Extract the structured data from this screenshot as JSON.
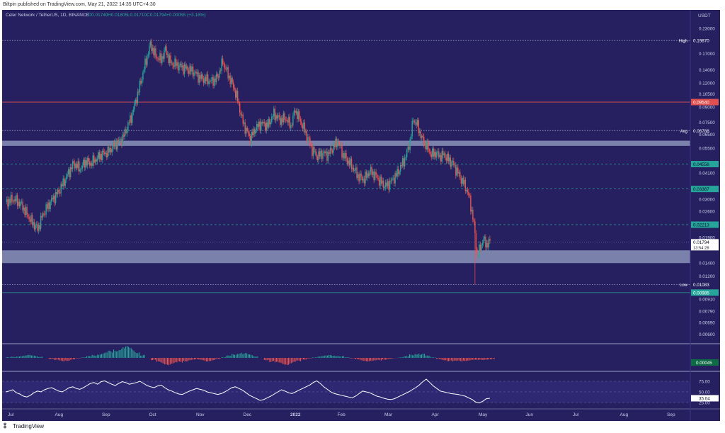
{
  "publisher_line": "Biltpin published on TradingView.com, May 21, 2022 14:35 UTC+4:30",
  "footer": {
    "logo_icon": "tradingview-logo-icon",
    "brand": "TradingView"
  },
  "colors": {
    "panel_bg": "#262060",
    "up": "#26a69a",
    "down": "#ef5350",
    "support_zone": "#8a94b8",
    "red_line": "#e05050",
    "rsi_line": "#ffffff"
  },
  "chart_data": {
    "type": "candlestick",
    "symbol_line": "Celer Network / TetherUS, 1D, BINANCE",
    "ohlc": {
      "open": "O0.01740",
      "high": "H0.01805",
      "low": "L0.01710",
      "close": "C0.01794",
      "change": "+0.00055 (+3.16%)"
    },
    "currency": "USDT",
    "y_scale": "log",
    "ylim": [
      0.0054,
      0.25
    ],
    "price_ticks": [
      "0.23000",
      "0.17000",
      "0.14000",
      "0.12000",
      "0.10500",
      "0.09000",
      "0.07500",
      "0.06500",
      "0.05500",
      "0.04100",
      "0.03000",
      "0.02600",
      "0.01900",
      "0.01400",
      "0.01200",
      "0.00910",
      "0.00790",
      "0.00690",
      "0.00600"
    ],
    "price_tick_values": [
      0.23,
      0.17,
      0.14,
      0.12,
      0.105,
      0.09,
      0.075,
      0.065,
      0.055,
      0.041,
      0.03,
      0.026,
      0.019,
      0.014,
      0.012,
      0.0091,
      0.0079,
      0.0069,
      0.006
    ],
    "x_labels": [
      "Jul",
      "Aug",
      "Sep",
      "Oct",
      "Nov",
      "Dec",
      "2022",
      "Feb",
      "Mar",
      "Apr",
      "May",
      "Jun",
      "Jul",
      "Aug",
      "Sep"
    ],
    "horizontal_levels": [
      {
        "label": "High",
        "value_text": "0.19870",
        "value": 0.1987,
        "style": "dotted",
        "color": "#9aa0c8"
      },
      {
        "label": "",
        "value_text": "0.09540",
        "value": 0.0954,
        "style": "solid",
        "color": "#e05050"
      },
      {
        "label": "Avg",
        "value_text": "0.06788",
        "value": 0.06788,
        "style": "dotted",
        "color": "#9aa0c8"
      },
      {
        "label": "",
        "value_text": "0.04556",
        "value": 0.04556,
        "style": "dashed",
        "color": "#26a69a"
      },
      {
        "label": "",
        "value_text": "0.03387",
        "value": 0.03387,
        "style": "dashed",
        "color": "#26a69a"
      },
      {
        "label": "",
        "value_text": "0.02213",
        "value": 0.02213,
        "style": "dashed",
        "color": "#26a69a"
      },
      {
        "label": "Low",
        "value_text": "0.01083",
        "value": 0.01083,
        "style": "dotted",
        "color": "#9aa0c8"
      },
      {
        "label": "",
        "value_text": "0.00985",
        "value": 0.00985,
        "style": "solid",
        "color": "#26a69a"
      }
    ],
    "zones": [
      {
        "low": 0.0566,
        "high": 0.0602
      },
      {
        "low": 0.014,
        "high": 0.0163
      }
    ],
    "last_price": {
      "value_text": "0.01794",
      "value": 0.01794,
      "countdown": "13:54:28"
    },
    "close_path": [
      [
        0,
        0.029
      ],
      [
        8,
        0.03
      ],
      [
        15,
        0.028
      ],
      [
        22,
        0.024
      ],
      [
        30,
        0.021
      ],
      [
        35,
        0.025
      ],
      [
        42,
        0.029
      ],
      [
        50,
        0.033
      ],
      [
        58,
        0.04
      ],
      [
        64,
        0.046
      ],
      [
        70,
        0.043
      ],
      [
        75,
        0.047
      ],
      [
        80,
        0.046
      ],
      [
        86,
        0.049
      ],
      [
        90,
        0.051
      ],
      [
        97,
        0.053
      ],
      [
        103,
        0.058
      ],
      [
        110,
        0.062
      ],
      [
        118,
        0.08
      ],
      [
        125,
        0.11
      ],
      [
        131,
        0.15
      ],
      [
        136,
        0.19
      ],
      [
        141,
        0.165
      ],
      [
        146,
        0.158
      ],
      [
        150,
        0.178
      ],
      [
        155,
        0.152
      ],
      [
        160,
        0.15
      ],
      [
        165,
        0.145
      ],
      [
        170,
        0.142
      ],
      [
        176,
        0.138
      ],
      [
        182,
        0.128
      ],
      [
        188,
        0.125
      ],
      [
        194,
        0.122
      ],
      [
        199,
        0.128
      ],
      [
        204,
        0.155
      ],
      [
        209,
        0.132
      ],
      [
        214,
        0.115
      ],
      [
        218,
        0.098
      ],
      [
        222,
        0.078
      ],
      [
        226,
        0.068
      ],
      [
        230,
        0.062
      ],
      [
        235,
        0.07
      ],
      [
        240,
        0.074
      ],
      [
        246,
        0.072
      ],
      [
        252,
        0.083
      ],
      [
        258,
        0.077
      ],
      [
        263,
        0.079
      ],
      [
        268,
        0.072
      ],
      [
        272,
        0.087
      ],
      [
        276,
        0.078
      ],
      [
        280,
        0.07
      ],
      [
        284,
        0.062
      ],
      [
        288,
        0.054
      ],
      [
        293,
        0.05
      ],
      [
        298,
        0.052
      ],
      [
        303,
        0.051
      ],
      [
        308,
        0.056
      ],
      [
        312,
        0.06
      ],
      [
        317,
        0.051
      ],
      [
        322,
        0.047
      ],
      [
        327,
        0.043
      ],
      [
        332,
        0.039
      ],
      [
        337,
        0.038
      ],
      [
        342,
        0.042
      ],
      [
        347,
        0.04
      ],
      [
        352,
        0.037
      ],
      [
        357,
        0.035
      ],
      [
        362,
        0.037
      ],
      [
        367,
        0.04
      ],
      [
        372,
        0.045
      ],
      [
        376,
        0.05
      ],
      [
        380,
        0.06
      ],
      [
        383,
        0.078
      ],
      [
        387,
        0.072
      ],
      [
        391,
        0.062
      ],
      [
        395,
        0.057
      ],
      [
        400,
        0.051
      ],
      [
        404,
        0.052
      ],
      [
        408,
        0.05
      ],
      [
        412,
        0.051
      ],
      [
        416,
        0.048
      ],
      [
        420,
        0.046
      ],
      [
        424,
        0.042
      ],
      [
        428,
        0.038
      ],
      [
        432,
        0.035
      ],
      [
        436,
        0.03
      ],
      [
        439,
        0.024
      ],
      [
        441,
        0.02
      ],
      [
        443,
        0.015
      ],
      [
        446,
        0.017
      ],
      [
        449,
        0.0185
      ],
      [
        452,
        0.0175
      ],
      [
        455,
        0.01794
      ]
    ],
    "low_wick_day": 441,
    "low_wick_value": 0.01083,
    "day_range": [
      0,
      640
    ],
    "histogram": {
      "last_value_text": "0.00045",
      "values": [
        0.05,
        0.1,
        0.15,
        0.2,
        0.25,
        0.2,
        0.1,
        0.0,
        -0.1,
        -0.2,
        -0.3,
        -0.25,
        -0.15,
        -0.05,
        0.05,
        0.15,
        0.25,
        0.35,
        0.45,
        0.6,
        0.75,
        0.9,
        1.0,
        0.85,
        0.55,
        0.25,
        0.0,
        -0.2,
        -0.4,
        -0.55,
        -0.6,
        -0.5,
        -0.4,
        -0.3,
        -0.2,
        -0.15,
        -0.2,
        -0.3,
        -0.25,
        -0.1,
        0.05,
        0.2,
        0.35,
        0.45,
        0.4,
        0.3,
        0.15,
        0.0,
        -0.2,
        -0.35,
        -0.45,
        -0.55,
        -0.6,
        -0.45,
        -0.3,
        -0.15,
        -0.05,
        0.05,
        0.15,
        0.2,
        0.25,
        0.2,
        0.15,
        0.05,
        -0.05,
        -0.15,
        -0.25,
        -0.3,
        -0.28,
        -0.22,
        -0.15,
        -0.08,
        -0.02,
        0.05,
        0.15,
        0.3,
        0.4,
        0.35,
        0.2,
        0.05,
        -0.1,
        -0.2,
        -0.28,
        -0.32,
        -0.3,
        -0.26,
        -0.22,
        -0.2,
        -0.18,
        -0.15,
        -0.12
      ]
    },
    "rsi": {
      "ticks": [
        "75.00",
        "50.00",
        "25.00"
      ],
      "tick_values": [
        75,
        50,
        25
      ],
      "last_value_text": "35.04",
      "values": [
        50,
        52,
        55,
        48,
        45,
        40,
        38,
        42,
        48,
        52,
        50,
        55,
        58,
        60,
        56,
        52,
        50,
        55,
        60,
        62,
        58,
        56,
        60,
        65,
        70,
        72,
        68,
        74,
        76,
        72,
        68,
        65,
        70,
        74,
        72,
        68,
        70,
        72,
        75,
        70,
        65,
        62,
        60,
        64,
        66,
        60,
        55,
        52,
        48,
        45,
        44,
        48,
        52,
        55,
        58,
        56,
        54,
        50,
        48,
        46,
        44,
        46,
        50,
        55,
        60,
        62,
        58,
        54,
        48,
        42,
        38,
        34,
        30,
        32,
        36,
        40,
        45,
        50,
        55,
        52,
        48,
        46,
        50,
        54,
        58,
        62,
        66,
        72,
        76,
        70,
        62,
        56,
        50,
        46,
        44,
        42,
        40,
        38,
        36,
        40,
        46,
        52,
        50,
        48,
        44,
        40,
        38,
        35,
        33,
        32,
        34,
        38,
        42,
        46,
        50,
        55,
        60,
        66,
        74,
        80,
        72,
        64,
        58,
        52,
        50,
        48,
        46,
        45,
        44,
        42,
        40,
        36,
        32,
        26,
        24,
        28,
        34,
        35.04
      ]
    }
  }
}
